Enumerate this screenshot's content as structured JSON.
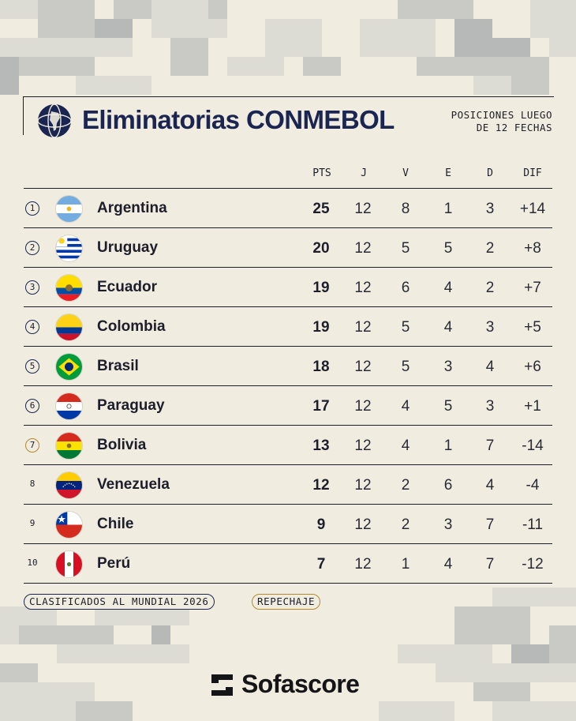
{
  "header": {
    "title": "Eliminatorias CONMEBOL",
    "subtitle_line1": "POSICIONES LUEGO",
    "subtitle_line2": "DE 12 FECHAS"
  },
  "columns": [
    "PTS",
    "J",
    "V",
    "E",
    "D",
    "DIF"
  ],
  "standings": [
    {
      "pos": "1",
      "team": "Argentina",
      "pts": "25",
      "j": "12",
      "v": "8",
      "e": "1",
      "d": "3",
      "dif": "+14",
      "status": "clasificado",
      "flag": "argentina"
    },
    {
      "pos": "2",
      "team": "Uruguay",
      "pts": "20",
      "j": "12",
      "v": "5",
      "e": "5",
      "d": "2",
      "dif": "+8",
      "status": "clasificado",
      "flag": "uruguay"
    },
    {
      "pos": "3",
      "team": "Ecuador",
      "pts": "19",
      "j": "12",
      "v": "6",
      "e": "4",
      "d": "2",
      "dif": "+7",
      "status": "clasificado",
      "flag": "ecuador"
    },
    {
      "pos": "4",
      "team": "Colombia",
      "pts": "19",
      "j": "12",
      "v": "5",
      "e": "4",
      "d": "3",
      "dif": "+5",
      "status": "clasificado",
      "flag": "colombia"
    },
    {
      "pos": "5",
      "team": "Brasil",
      "pts": "18",
      "j": "12",
      "v": "5",
      "e": "3",
      "d": "4",
      "dif": "+6",
      "status": "clasificado",
      "flag": "brasil"
    },
    {
      "pos": "6",
      "team": "Paraguay",
      "pts": "17",
      "j": "12",
      "v": "4",
      "e": "5",
      "d": "3",
      "dif": "+1",
      "status": "clasificado",
      "flag": "paraguay"
    },
    {
      "pos": "7",
      "team": "Bolivia",
      "pts": "13",
      "j": "12",
      "v": "4",
      "e": "1",
      "d": "7",
      "dif": "-14",
      "status": "repechaje",
      "flag": "bolivia"
    },
    {
      "pos": "8",
      "team": "Venezuela",
      "pts": "12",
      "j": "12",
      "v": "2",
      "e": "6",
      "d": "4",
      "dif": "-4",
      "status": "none",
      "flag": "venezuela"
    },
    {
      "pos": "9",
      "team": "Chile",
      "pts": "9",
      "j": "12",
      "v": "2",
      "e": "3",
      "d": "7",
      "dif": "-11",
      "status": "none",
      "flag": "chile"
    },
    {
      "pos": "10",
      "team": "Perú",
      "pts": "7",
      "j": "12",
      "v": "1",
      "e": "4",
      "d": "7",
      "dif": "-12",
      "status": "none",
      "flag": "peru"
    }
  ],
  "legend": {
    "qualified": "CLASIFICADOS AL MUNDIAL 2026",
    "playoff": "REPECHAJE"
  },
  "brand": {
    "name": "Sofascore"
  },
  "colors": {
    "navy": "#1b2551",
    "gold": "#b38a2c",
    "background": "#f0ede0"
  }
}
